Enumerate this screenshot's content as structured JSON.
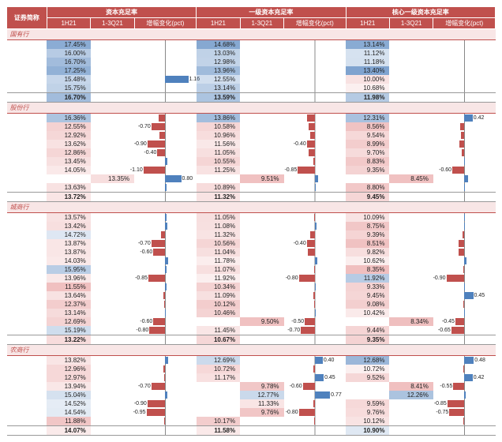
{
  "colors": {
    "header_bg": "#c0504d",
    "header_fg": "#ffffff",
    "pos_bar": "#4f81bd",
    "neg_bar": "#c0504d",
    "heat_pos_max": "#4f81bd",
    "heat_neg_max": "#e8a0a0",
    "section_bg": "#f8e6e6",
    "section_fg": "#c0504d"
  },
  "headers": {
    "name": "证券简称",
    "groups": [
      "资本充足率",
      "一级资本充足率",
      "核心一级资本充足率"
    ],
    "subs": [
      "1H21",
      "1-3Q21",
      "增幅变化(pct)"
    ]
  },
  "chg_scale": 1.5,
  "heat": {
    "g0": {
      "min": 11.0,
      "max": 18.0
    },
    "g1": {
      "min": 9.0,
      "max": 15.0
    },
    "g2": {
      "min": 8.0,
      "max": 13.5
    }
  },
  "sections": [
    {
      "label": "国有行",
      "rows": [
        {
          "name": "",
          "v": [
            17.45,
            null,
            null,
            14.68,
            null,
            null,
            13.14,
            null,
            null
          ]
        },
        {
          "name": "",
          "v": [
            16.0,
            null,
            null,
            13.03,
            null,
            null,
            11.12,
            null,
            null
          ]
        },
        {
          "name": "",
          "v": [
            16.7,
            null,
            null,
            12.98,
            null,
            null,
            11.18,
            null,
            null
          ]
        },
        {
          "name": "",
          "v": [
            17.25,
            null,
            null,
            13.96,
            null,
            null,
            13.4,
            null,
            null
          ]
        },
        {
          "name": "",
          "v": [
            15.48,
            null,
            1.16,
            12.55,
            null,
            null,
            10.0,
            null,
            null
          ]
        },
        {
          "name": "",
          "v": [
            15.75,
            null,
            null,
            13.14,
            null,
            null,
            10.68,
            null,
            null
          ]
        }
      ],
      "summary": {
        "name": "",
        "v": [
          16.7,
          null,
          null,
          13.59,
          null,
          null,
          11.98,
          null,
          null
        ]
      }
    },
    {
      "label": "股份行",
      "rows": [
        {
          "name": "",
          "v": [
            16.36,
            null,
            -0.35,
            13.86,
            null,
            -0.38,
            12.31,
            null,
            0.42
          ]
        },
        {
          "name": "",
          "v": [
            12.55,
            null,
            -0.7,
            10.58,
            null,
            -0.32,
            8.56,
            null,
            -0.2
          ]
        },
        {
          "name": "",
          "v": [
            12.92,
            null,
            -0.3,
            10.96,
            null,
            -0.22,
            9.54,
            null,
            -0.15
          ]
        },
        {
          "name": "",
          "v": [
            13.62,
            null,
            -0.9,
            11.56,
            null,
            -0.4,
            8.99,
            null,
            -0.25
          ]
        },
        {
          "name": "",
          "v": [
            12.86,
            null,
            -0.4,
            11.05,
            null,
            -0.3,
            9.7,
            null,
            -0.12
          ]
        },
        {
          "name": "",
          "v": [
            13.45,
            null,
            0.1,
            10.55,
            null,
            -0.08,
            8.83,
            null,
            0.05
          ]
        },
        {
          "name": "",
          "v": [
            14.05,
            null,
            -1.1,
            11.25,
            null,
            -0.85,
            9.35,
            null,
            -0.6
          ]
        },
        {
          "name": "",
          "v": [
            null,
            13.35,
            0.8,
            null,
            9.51,
            0.18,
            null,
            8.45,
            0.2
          ]
        },
        {
          "name": "",
          "v": [
            13.63,
            null,
            0.08,
            10.89,
            null,
            0.06,
            8.8,
            null,
            0.04
          ]
        }
      ],
      "summary": {
        "name": "",
        "v": [
          13.72,
          null,
          null,
          11.32,
          null,
          null,
          9.45,
          null,
          null
        ]
      }
    },
    {
      "label": "城商行",
      "rows": [
        {
          "name": "",
          "v": [
            13.57,
            null,
            0.05,
            11.05,
            null,
            -0.05,
            10.09,
            null,
            0.02
          ]
        },
        {
          "name": "",
          "v": [
            13.42,
            null,
            0.1,
            11.08,
            null,
            0.08,
            8.75,
            null,
            0.05
          ]
        },
        {
          "name": "",
          "v": [
            14.72,
            null,
            -0.2,
            11.32,
            null,
            -0.25,
            9.39,
            null,
            -0.1
          ]
        },
        {
          "name": "",
          "v": [
            13.87,
            null,
            -0.7,
            10.56,
            null,
            -0.4,
            8.51,
            null,
            -0.3
          ]
        },
        {
          "name": "",
          "v": [
            13.87,
            null,
            -0.6,
            11.04,
            null,
            -0.35,
            9.82,
            null,
            -0.28
          ]
        },
        {
          "name": "",
          "v": [
            14.03,
            null,
            0.15,
            11.78,
            null,
            0.12,
            10.62,
            null,
            0.1
          ]
        },
        {
          "name": "",
          "v": [
            15.95,
            null,
            0.05,
            11.07,
            null,
            -0.05,
            8.35,
            null,
            -0.04
          ]
        },
        {
          "name": "",
          "v": [
            13.96,
            null,
            -0.85,
            11.92,
            null,
            -0.8,
            11.92,
            null,
            -0.9
          ]
        },
        {
          "name": "",
          "v": [
            11.55,
            null,
            0.06,
            10.34,
            null,
            0.05,
            9.33,
            null,
            0.04
          ]
        },
        {
          "name": "",
          "v": [
            13.64,
            null,
            -0.08,
            11.09,
            null,
            -0.06,
            9.45,
            null,
            0.45
          ]
        },
        {
          "name": "",
          "v": [
            12.37,
            null,
            -0.05,
            10.12,
            null,
            -0.04,
            9.08,
            null,
            -0.03
          ]
        },
        {
          "name": "",
          "v": [
            13.14,
            null,
            0.04,
            10.46,
            null,
            0.03,
            10.42,
            null,
            0.02
          ]
        },
        {
          "name": "",
          "v": [
            12.69,
            null,
            -0.6,
            null,
            9.5,
            -0.5,
            null,
            8.34,
            -0.45
          ]
        },
        {
          "name": "",
          "v": [
            15.19,
            null,
            -0.8,
            11.45,
            null,
            -0.7,
            9.44,
            null,
            -0.65
          ]
        }
      ],
      "summary": {
        "name": "",
        "v": [
          13.22,
          null,
          null,
          10.67,
          null,
          null,
          9.35,
          null,
          null
        ]
      }
    },
    {
      "label": "农商行",
      "rows": [
        {
          "name": "",
          "v": [
            13.82,
            null,
            0.15,
            12.69,
            null,
            0.4,
            12.68,
            null,
            0.48
          ]
        },
        {
          "name": "",
          "v": [
            12.96,
            null,
            -0.1,
            10.72,
            null,
            -0.08,
            10.72,
            null,
            -0.06
          ]
        },
        {
          "name": "",
          "v": [
            12.97,
            null,
            -0.05,
            11.17,
            null,
            0.45,
            9.52,
            null,
            0.42
          ]
        },
        {
          "name": "",
          "v": [
            13.94,
            null,
            -0.7,
            null,
            9.78,
            -0.6,
            null,
            8.41,
            -0.55
          ]
        },
        {
          "name": "",
          "v": [
            15.04,
            null,
            0.1,
            null,
            12.77,
            0.77,
            null,
            12.26,
            0.08
          ]
        },
        {
          "name": "",
          "v": [
            14.52,
            null,
            -0.9,
            null,
            11.33,
            -0.06,
            9.59,
            null,
            -0.85
          ]
        },
        {
          "name": "",
          "v": [
            14.54,
            null,
            -0.95,
            null,
            9.76,
            -0.8,
            9.76,
            null,
            -0.75
          ]
        },
        {
          "name": "",
          "v": [
            11.88,
            null,
            -0.06,
            10.17,
            null,
            -0.05,
            10.12,
            null,
            -0.04
          ]
        }
      ],
      "summary": {
        "name": "",
        "v": [
          14.07,
          null,
          null,
          11.58,
          null,
          null,
          10.9,
          null,
          null
        ]
      }
    }
  ]
}
